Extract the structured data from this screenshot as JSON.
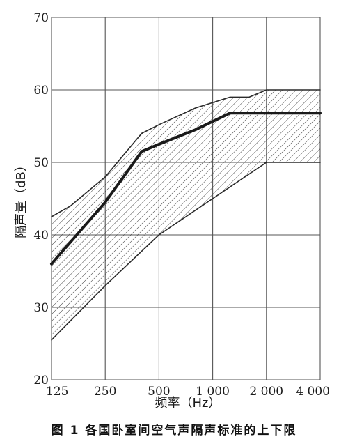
{
  "caption": "图 1   各国卧室间空气声隔声标准的上下限",
  "chart_data": {
    "type": "area",
    "title": "",
    "xlabel": "频率（Hz）",
    "ylabel": "隔声量（dB）",
    "x_scale": "log",
    "xlim": [
      125,
      4000
    ],
    "ylim": [
      20,
      70
    ],
    "grid": true,
    "x_ticks": [
      125,
      250,
      500,
      1000,
      2000,
      4000
    ],
    "x_tick_labels": [
      "125",
      "250",
      "500",
      "1 000",
      "2 000",
      "4 000"
    ],
    "y_ticks": [
      20,
      30,
      40,
      50,
      60,
      70
    ],
    "y_tick_labels": [
      "20",
      "30",
      "40",
      "50",
      "60",
      "70"
    ],
    "series": [
      {
        "role": "upper-bound",
        "x": [
          125,
          160,
          250,
          400,
          500,
          800,
          1250,
          1600,
          2000,
          4000
        ],
        "y": [
          42.5,
          44,
          48,
          54,
          55.2,
          57.5,
          59,
          59,
          60,
          60
        ],
        "color": "#2a2a2a"
      },
      {
        "role": "average",
        "x": [
          125,
          250,
          400,
          500,
          800,
          1250,
          2000,
          4000
        ],
        "y": [
          36,
          44.5,
          51.5,
          52.5,
          54.5,
          56.8,
          56.8,
          56.8
        ],
        "color": "#1a1a1a"
      },
      {
        "role": "lower-bound",
        "x": [
          125,
          250,
          500,
          1000,
          2000,
          4000
        ],
        "y": [
          25.5,
          33,
          40,
          45,
          50,
          50
        ],
        "color": "#2a2a2a"
      }
    ],
    "hatch_color": "#3a3a3a",
    "grid_color": "#555555"
  }
}
